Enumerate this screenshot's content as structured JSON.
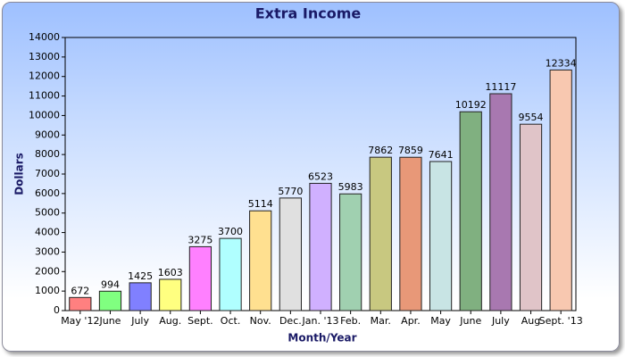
{
  "chart_data": {
    "type": "bar",
    "title": "Extra Income",
    "x_label": "Month/Year",
    "y_label": "Dollars",
    "categories": [
      "May '12",
      "June",
      "July",
      "Aug.",
      "Sept.",
      "Oct.",
      "Nov.",
      "Dec.",
      "Jan. '13",
      "Feb.",
      "Mar.",
      "Apr.",
      "May",
      "June",
      "July",
      "Aug",
      "Sept. '13"
    ],
    "values": [
      672,
      994,
      1425,
      1603,
      3275,
      3700,
      5114,
      5770,
      6523,
      5983,
      7862,
      7859,
      7641,
      10192,
      11117,
      9554,
      12334
    ],
    "colors": [
      "#ff8080",
      "#80ff80",
      "#8080ff",
      "#ffff80",
      "#ff80ff",
      "#b0ffff",
      "#ffe090",
      "#e0e0e0",
      "#d0b0ff",
      "#a0d0b0",
      "#c8c880",
      "#e89878",
      "#c8e4e4",
      "#80b080",
      "#a878b0",
      "#e0c4c8",
      "#f8c8b0"
    ],
    "ylim": [
      0,
      14000
    ],
    "yticks": [
      0,
      1000,
      2000,
      3000,
      4000,
      5000,
      6000,
      7000,
      8000,
      9000,
      10000,
      11000,
      12000,
      13000,
      14000
    ],
    "grid": false
  }
}
